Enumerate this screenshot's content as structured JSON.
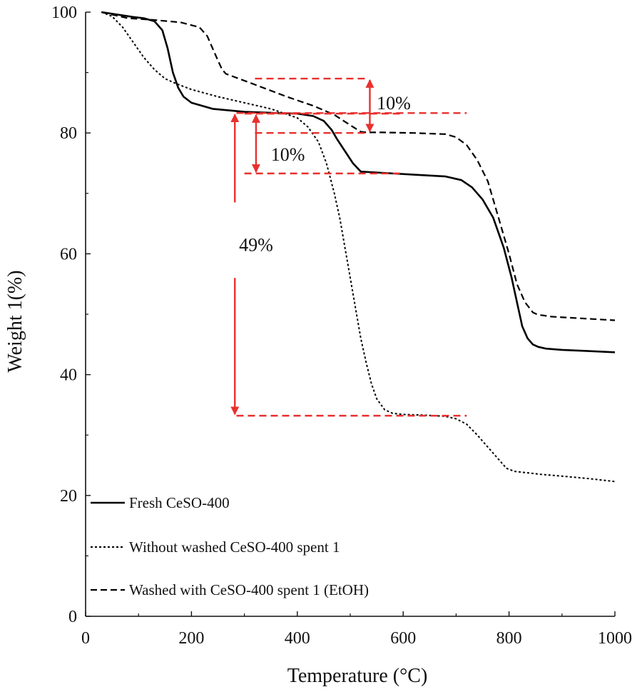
{
  "chart_data": {
    "type": "line",
    "title": "",
    "xlabel": "Temperature (°C)",
    "ylabel": "Weight 1(%)",
    "xlim": [
      0,
      1000
    ],
    "ylim": [
      0,
      100
    ],
    "xticks": [
      "0",
      "200",
      "400",
      "600",
      "800",
      "1000"
    ],
    "yticks": [
      "0",
      "20",
      "40",
      "60",
      "80",
      "100"
    ],
    "grid": false,
    "legend_position": "bottom-left",
    "series": [
      {
        "name": "Fresh CeSO-400",
        "style": "solid",
        "color": "#000000",
        "x": [
          30,
          60,
          90,
          110,
          130,
          145,
          155,
          165,
          175,
          185,
          200,
          240,
          300,
          360,
          400,
          430,
          450,
          465,
          475,
          490,
          505,
          520,
          560,
          620,
          680,
          710,
          730,
          750,
          770,
          790,
          805,
          815,
          825,
          835,
          845,
          855,
          870,
          900,
          950,
          1000
        ],
        "y": [
          100,
          99.6,
          99.2,
          99,
          98.5,
          97,
          94,
          90,
          87.5,
          86,
          85,
          84,
          83.5,
          83.3,
          83.2,
          82.8,
          82,
          80.5,
          79,
          77,
          75,
          73.6,
          73.4,
          73.1,
          72.8,
          72.2,
          71,
          69,
          66,
          61,
          56,
          52,
          48,
          46,
          45,
          44.6,
          44.3,
          44.1,
          43.9,
          43.7
        ]
      },
      {
        "name": "Without washed CeSO-400 spent 1",
        "style": "dotted",
        "color": "#000000",
        "x": [
          30,
          50,
          70,
          90,
          110,
          130,
          150,
          170,
          200,
          250,
          300,
          350,
          400,
          420,
          440,
          455,
          470,
          480,
          490,
          500,
          510,
          520,
          530,
          540,
          550,
          565,
          580,
          600,
          640,
          680,
          700,
          720,
          740,
          760,
          780,
          795,
          810,
          830,
          860,
          900,
          950,
          1000
        ],
        "y": [
          100,
          99.3,
          97.5,
          95,
          92.5,
          90.5,
          89,
          88.2,
          87.2,
          86,
          85,
          84,
          82.5,
          81,
          78.5,
          75,
          70,
          66,
          61,
          56,
          51,
          46,
          42,
          38.5,
          36,
          34.2,
          33.6,
          33.4,
          33.3,
          33.1,
          32.7,
          31.8,
          30,
          28,
          26,
          24.5,
          24,
          23.8,
          23.5,
          23.2,
          22.8,
          22.3
        ]
      },
      {
        "name": "Washed with CeSO-400 spent 1 (EtOH)",
        "style": "dashed",
        "color": "#000000",
        "x": [
          30,
          80,
          130,
          180,
          215,
          230,
          240,
          250,
          258,
          265,
          280,
          320,
          380,
          430,
          470,
          500,
          520,
          530,
          560,
          620,
          680,
          700,
          720,
          740,
          760,
          780,
          800,
          815,
          830,
          845,
          855,
          865,
          880,
          920,
          960,
          1000
        ],
        "y": [
          100,
          99,
          98.7,
          98.3,
          97.5,
          96,
          94,
          92,
          90.5,
          89.8,
          89.3,
          88,
          86,
          84.5,
          83,
          81.3,
          80.2,
          80.1,
          80.1,
          80,
          79.8,
          79.3,
          78,
          75.5,
          72,
          66,
          60,
          55,
          52,
          50.3,
          49.9,
          49.8,
          49.6,
          49.4,
          49.2,
          49
        ]
      }
    ],
    "annotations": [
      {
        "label": "10%",
        "series": "Washed with CeSO-400 spent 1 (EtOH)",
        "from_y": 89,
        "to_y": 80,
        "x_range": [
          320,
          530
        ],
        "arrow_x": 537,
        "text_x": 550,
        "text_y": 85
      },
      {
        "label": "10%",
        "series": "Fresh CeSO-400",
        "from_y": 83.2,
        "to_y": 73.3,
        "x_range": [
          300,
          595
        ],
        "arrow_x": 322,
        "text_x": 350,
        "text_y": 76.5
      },
      {
        "label": "49%",
        "series": "Without washed CeSO-400 spent 1",
        "from_y": 83.3,
        "to_y": 33.2,
        "x_range": [
          285,
          720
        ],
        "arrow_x": 282,
        "text_x": 290,
        "text_y": 61.5
      }
    ],
    "annotation_color": "#e8302e"
  },
  "axes_color": "#111111"
}
